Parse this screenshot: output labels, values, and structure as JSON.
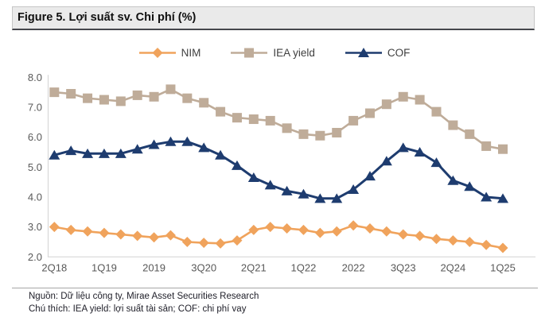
{
  "header": {
    "title": "Figure 5. Lợi suất sv. Chi phí (%)"
  },
  "legend": [
    {
      "label": "NIM",
      "marker": "diamond",
      "color": "#F0A35C"
    },
    {
      "label": "IEA yield",
      "marker": "square",
      "color": "#BFAC99"
    },
    {
      "label": "COF",
      "marker": "triangle",
      "color": "#1E3C6F"
    }
  ],
  "chart_data": {
    "type": "line",
    "title": "Figure 5. Lợi suất sv. Chi phí (%)",
    "xlabel": "",
    "ylabel": "",
    "ylim": [
      2.0,
      8.0
    ],
    "y_ticks": [
      "8.0",
      "7.0",
      "6.0",
      "5.0",
      "4.0",
      "3.0",
      "2.0"
    ],
    "grid": false,
    "legend_position": "top",
    "n_points": 28,
    "x_tick_labels": [
      "2Q18",
      "1Q19",
      "2019",
      "3Q20",
      "2Q21",
      "1Q22",
      "2022",
      "3Q23",
      "2Q24",
      "1Q25"
    ],
    "x_tick_indices": [
      0,
      3,
      6,
      9,
      12,
      15,
      18,
      21,
      24,
      27
    ],
    "series": [
      {
        "name": "NIM",
        "marker": "diamond",
        "color": "#F0A35C",
        "values": [
          3.0,
          2.9,
          2.85,
          2.8,
          2.75,
          2.7,
          2.65,
          2.72,
          2.5,
          2.47,
          2.45,
          2.55,
          2.9,
          3.0,
          2.95,
          2.9,
          2.8,
          2.85,
          3.05,
          2.95,
          2.85,
          2.75,
          2.7,
          2.6,
          2.55,
          2.5,
          2.4,
          2.3
        ]
      },
      {
        "name": "IEA yield",
        "marker": "square",
        "color": "#BFAC99",
        "values": [
          7.5,
          7.45,
          7.3,
          7.25,
          7.2,
          7.4,
          7.35,
          7.6,
          7.3,
          7.15,
          6.85,
          6.65,
          6.6,
          6.55,
          6.3,
          6.1,
          6.05,
          6.15,
          6.55,
          6.8,
          7.1,
          7.35,
          7.25,
          6.85,
          6.4,
          6.1,
          5.7,
          5.6
        ]
      },
      {
        "name": "COF",
        "marker": "triangle",
        "color": "#1E3C6F",
        "values": [
          5.4,
          5.55,
          5.45,
          5.45,
          5.45,
          5.6,
          5.75,
          5.85,
          5.85,
          5.65,
          5.4,
          5.05,
          4.65,
          4.4,
          4.2,
          4.1,
          3.95,
          3.95,
          4.25,
          4.7,
          5.2,
          5.65,
          5.5,
          5.15,
          4.55,
          4.35,
          4.0,
          3.95
        ]
      }
    ],
    "axis_color": "#D8D8D8",
    "tick_label_color": "#595959"
  },
  "footer": {
    "source": "Nguồn: Dữ liệu công ty, Mirae Asset Securities Research",
    "note": "Chú thích: IEA yield: lợi suất tài sản; COF: chi phí vay"
  }
}
